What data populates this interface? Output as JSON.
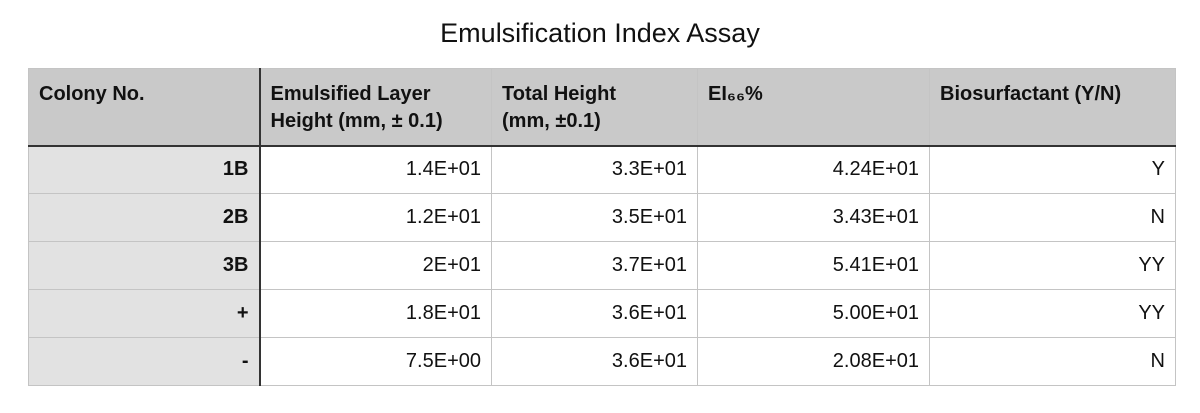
{
  "title": "Emulsification Index Assay",
  "table": {
    "header": [
      "Colony No.",
      "Emulsified Layer Height (mm, ± 0.1)",
      "Total Height (mm, ±0.1)",
      "EI₆₆%",
      "Biosurfactant (Y/N)"
    ],
    "rows": [
      [
        "1B",
        "1.4E+01",
        "3.3E+01",
        "4.24E+01",
        "Y"
      ],
      [
        "2B",
        "1.2E+01",
        "3.5E+01",
        "3.43E+01",
        "N"
      ],
      [
        "3B",
        "2E+01",
        "3.7E+01",
        "5.41E+01",
        "YY"
      ],
      [
        "+",
        "1.8E+01",
        "3.6E+01",
        "5.00E+01",
        "YY"
      ],
      [
        "-",
        "7.5E+00",
        "3.6E+01",
        "2.08E+01",
        "N"
      ]
    ]
  }
}
